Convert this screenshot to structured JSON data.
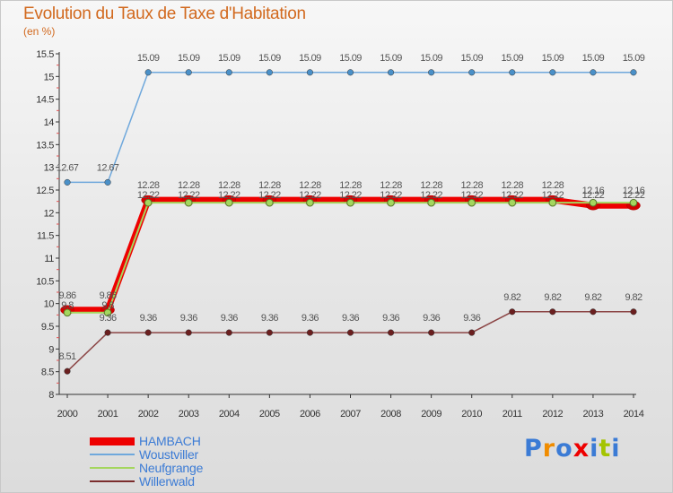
{
  "title": "Evolution du Taux de Taxe d'Habitation",
  "unit_label": "(en %)",
  "logo_text": "Proxiti",
  "colors": {
    "title": "#d2691e",
    "HAMBACH": "#ee0000",
    "Woustviller": "#6fa8dc",
    "Neufgrange": "#a4d65e",
    "Willerwald": "#7b2d2d"
  },
  "chart_data": {
    "type": "line",
    "title": "Evolution du Taux de Taxe d'Habitation",
    "ylabel": "(en %)",
    "xlabel": "",
    "x": [
      "2000",
      "2001",
      "2002",
      "2003",
      "2004",
      "2005",
      "2006",
      "2007",
      "2008",
      "2009",
      "2010",
      "2011",
      "2012",
      "2013",
      "2014"
    ],
    "ylim": [
      8,
      15.5
    ],
    "yticks": [
      "8",
      "8.5",
      "9",
      "9.5",
      "10",
      "10.5",
      "11",
      "11.5",
      "12",
      "12.5",
      "13",
      "13.5",
      "14",
      "14.5",
      "15",
      "15.5"
    ],
    "grid": false,
    "legend_position": "bottom-left",
    "series": [
      {
        "name": "HAMBACH",
        "values": [
          9.86,
          9.86,
          12.28,
          12.28,
          12.28,
          12.28,
          12.28,
          12.28,
          12.28,
          12.28,
          12.28,
          12.28,
          12.28,
          12.16,
          12.16
        ],
        "labels": [
          "9.86",
          "9.86",
          "12.28",
          "12.28",
          "12.28",
          "12.28",
          "12.28",
          "12.28",
          "12.28",
          "12.28",
          "12.28",
          "12.28",
          "12.28",
          "12.16",
          "12.16"
        ]
      },
      {
        "name": "Woustviller",
        "values": [
          12.67,
          12.67,
          15.09,
          15.09,
          15.09,
          15.09,
          15.09,
          15.09,
          15.09,
          15.09,
          15.09,
          15.09,
          15.09,
          15.09,
          15.09
        ],
        "labels": [
          "12.67",
          "12.67",
          "15.09",
          "15.09",
          "15.09",
          "15.09",
          "15.09",
          "15.09",
          "15.09",
          "15.09",
          "15.09",
          "15.09",
          "15.09",
          "15.09",
          "15.09"
        ]
      },
      {
        "name": "Neufgrange",
        "values": [
          9.8,
          9.8,
          12.22,
          12.22,
          12.22,
          12.22,
          12.22,
          12.22,
          12.22,
          12.22,
          12.22,
          12.22,
          12.22,
          12.22,
          12.22
        ],
        "labels": [
          "9.8",
          "9.8",
          "12.22",
          "12.22",
          "12.22",
          "12.22",
          "12.22",
          "12.22",
          "12.22",
          "12.22",
          "12.22",
          "12.22",
          "12.22",
          "12.22",
          "12.22"
        ]
      },
      {
        "name": "Willerwald",
        "values": [
          8.51,
          9.36,
          9.36,
          9.36,
          9.36,
          9.36,
          9.36,
          9.36,
          9.36,
          9.36,
          9.36,
          9.82,
          9.82,
          9.82,
          9.82
        ],
        "labels": [
          "8.51",
          "9.36",
          "9.36",
          "9.36",
          "9.36",
          "9.36",
          "9.36",
          "9.36",
          "9.36",
          "9.36",
          "9.36",
          "9.82",
          "9.82",
          "9.82",
          "9.82"
        ]
      }
    ]
  }
}
